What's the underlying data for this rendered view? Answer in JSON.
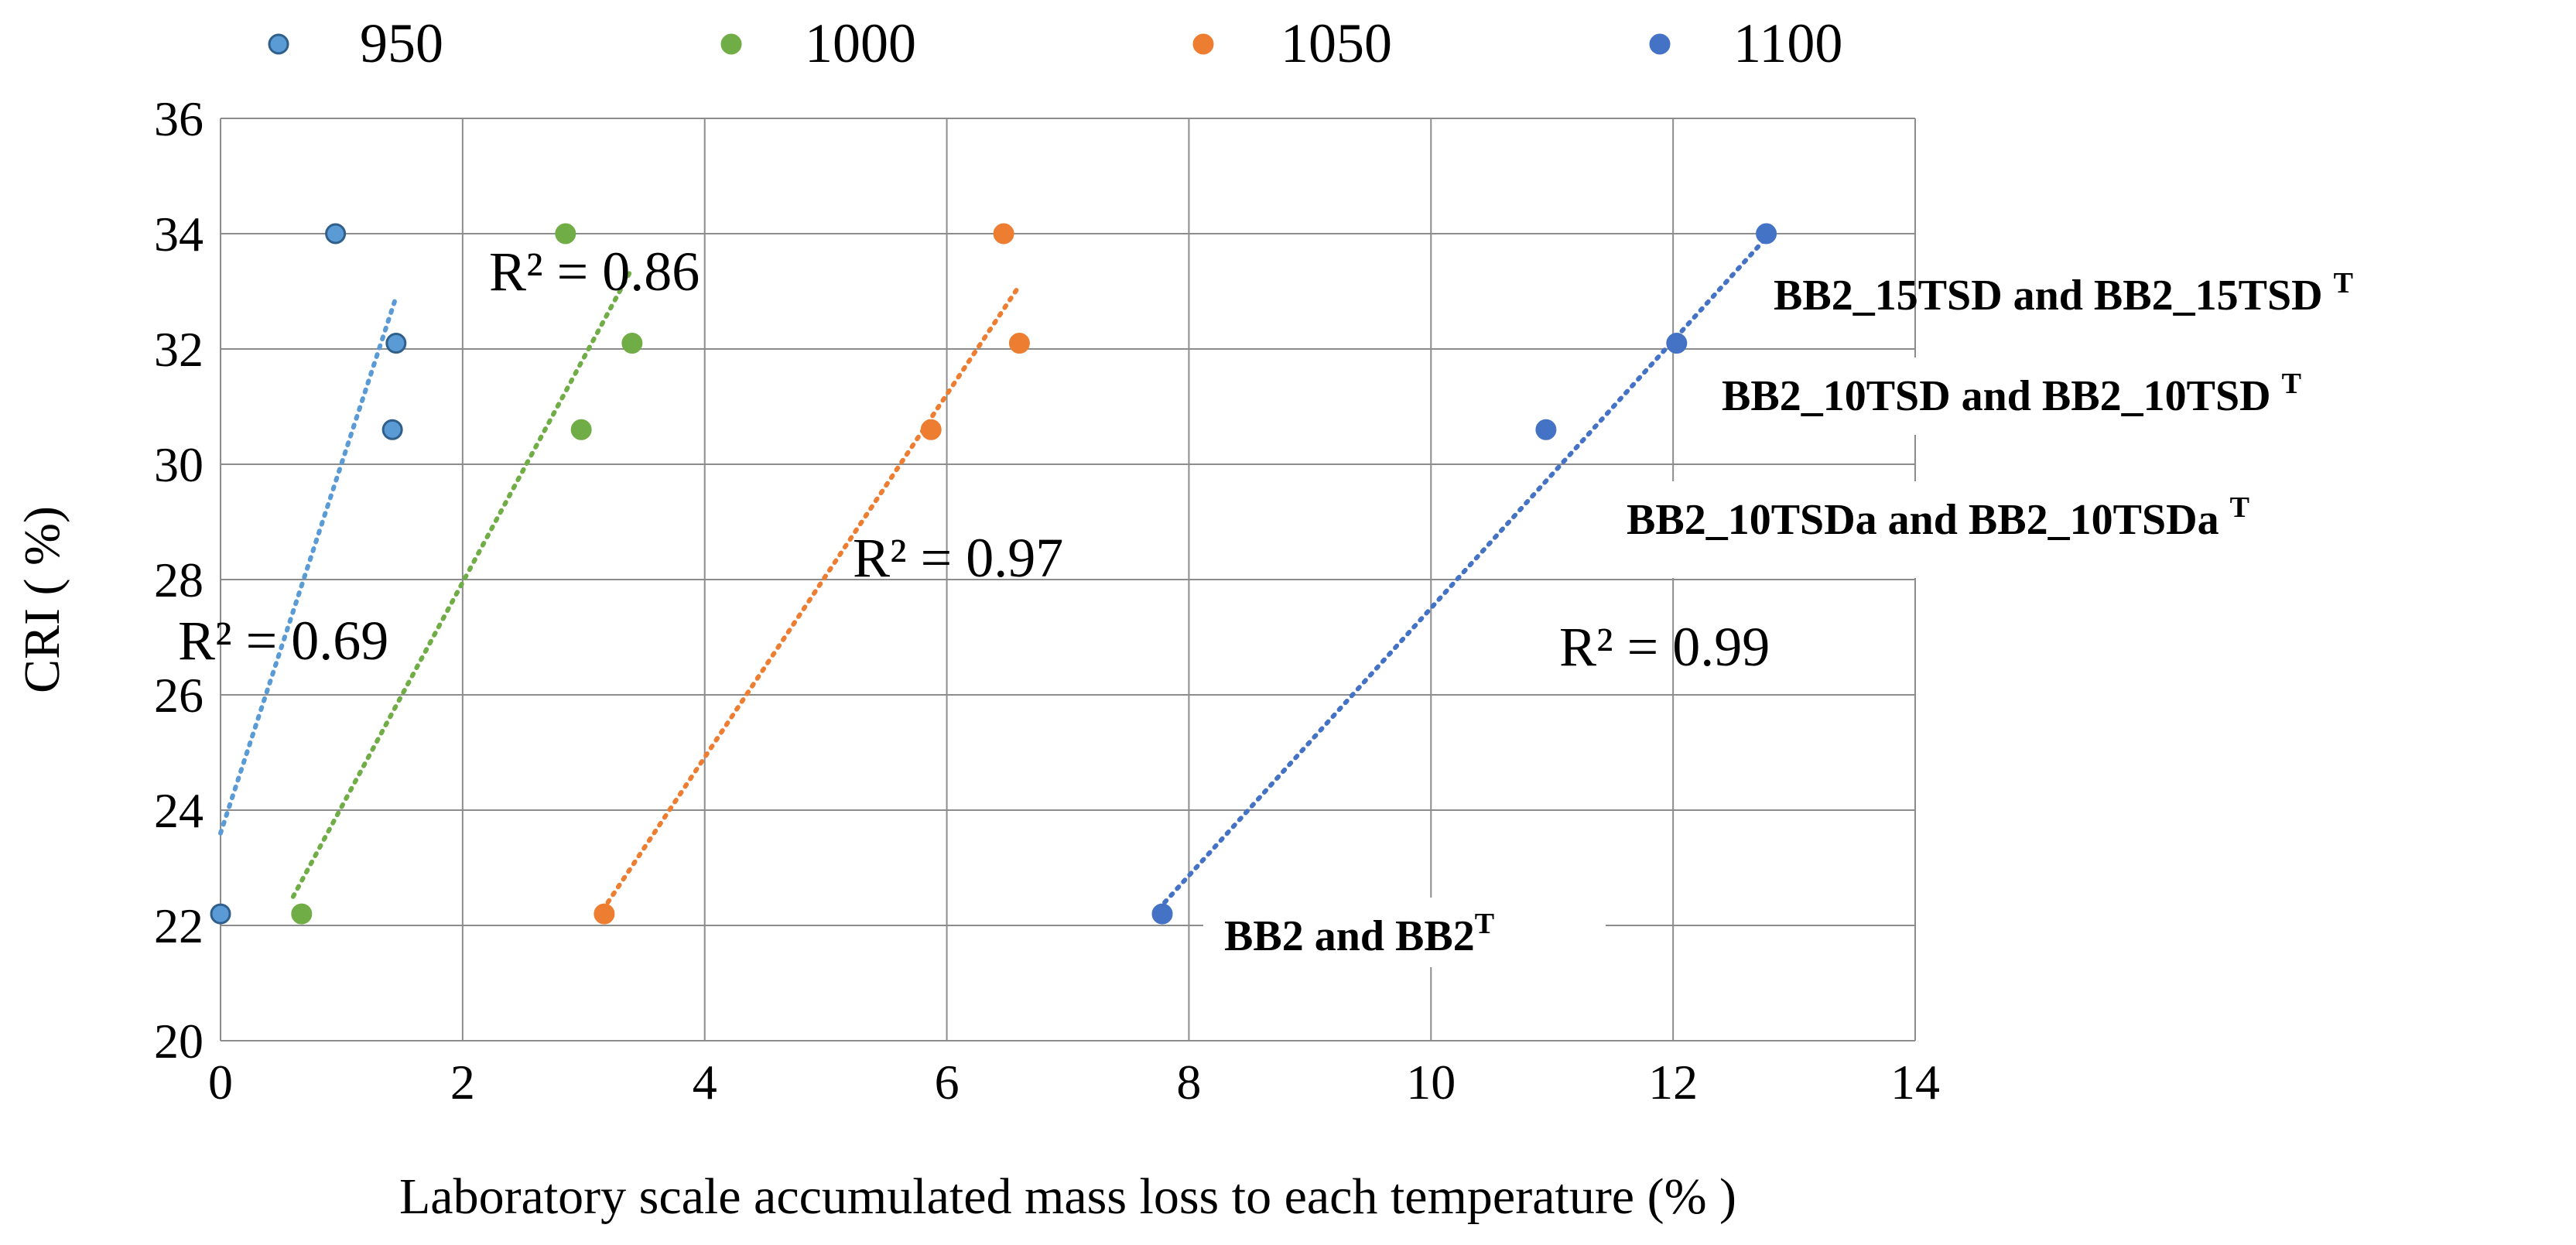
{
  "chart_data": {
    "type": "scatter",
    "title": "",
    "xlabel": "Laboratory scale accumulated mass loss to each temperature  (% )",
    "ylabel": "CRI ( %)",
    "xlim": [
      0,
      14
    ],
    "ylim": [
      20,
      36
    ],
    "xticks": [
      0,
      2,
      4,
      6,
      8,
      10,
      12,
      14
    ],
    "yticks": [
      20,
      22,
      24,
      26,
      28,
      30,
      32,
      34,
      36
    ],
    "grid": true,
    "legend_position": "top",
    "series": [
      {
        "name": "950",
        "color": "#5B9BD5",
        "points": [
          [
            0.0,
            22.2
          ],
          [
            0.95,
            34.0
          ],
          [
            1.45,
            32.1
          ],
          [
            1.42,
            30.6
          ]
        ],
        "trendline": {
          "x": [
            0.0,
            1.45
          ],
          "y": [
            23.6,
            32.9
          ]
        },
        "r2": "R² = 0.69"
      },
      {
        "name": "1000",
        "color": "#70AD47",
        "points": [
          [
            0.67,
            22.2
          ],
          [
            2.85,
            34.0
          ],
          [
            3.4,
            32.1
          ],
          [
            2.98,
            30.6
          ]
        ],
        "trendline": {
          "x": [
            0.6,
            3.4
          ],
          "y": [
            22.5,
            33.4
          ]
        },
        "r2": "R² = 0.86"
      },
      {
        "name": "1050",
        "color": "#ED7D31",
        "points": [
          [
            3.17,
            22.2
          ],
          [
            6.47,
            34.0
          ],
          [
            6.6,
            32.1
          ],
          [
            5.87,
            30.6
          ]
        ],
        "trendline": {
          "x": [
            3.2,
            6.6
          ],
          "y": [
            22.4,
            33.1
          ]
        },
        "r2": "R² = 0.97"
      },
      {
        "name": "1100",
        "color": "#4472C4",
        "points": [
          [
            7.78,
            22.2
          ],
          [
            12.77,
            34.0
          ],
          [
            12.03,
            32.1
          ],
          [
            10.95,
            30.6
          ]
        ],
        "trendline": {
          "x": [
            7.8,
            12.8
          ],
          "y": [
            22.4,
            34.0
          ]
        },
        "r2": "R² = 0.99"
      }
    ],
    "annotations": [
      {
        "text": "BB2_15TSD and BB2_15TSD ",
        "sup": "T"
      },
      {
        "text": "BB2_10TSD and BB2_10TSD ",
        "sup": "T"
      },
      {
        "text": "BB2_10TSDa and BB2_10TSDa ",
        "sup": "T"
      },
      {
        "text": "BB2 and BB2",
        "sup": "T"
      }
    ]
  }
}
